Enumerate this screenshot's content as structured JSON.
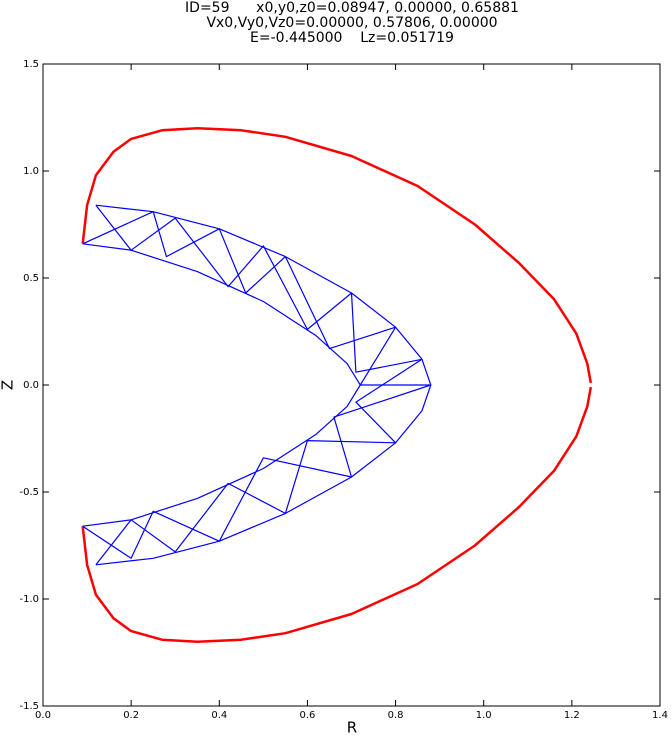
{
  "chart_data": {
    "type": "line",
    "title": [
      "ID=59      x0,y0,z0=0.08947, 0.00000, 0.65881",
      "Vx0,Vy0,Vz0=0.00000, 0.57806, 0.00000",
      "E=-0.445000    Lz=0.051719"
    ],
    "xlabel": "R",
    "ylabel": "Z",
    "xlim": [
      0,
      1.4
    ],
    "ylim": [
      -1.5,
      1.5
    ],
    "xticks": [
      {
        "value": 0,
        "label": "0.0"
      },
      0.2,
      0.4,
      0.6,
      0.8,
      {
        "value": 1,
        "label": "1.0"
      },
      1.2,
      1.4
    ],
    "yticks": [
      -1.5,
      {
        "value": -1,
        "label": "-1.0"
      },
      -0.5,
      {
        "value": 0,
        "label": "0.0"
      },
      0.5,
      {
        "value": 1,
        "label": "1.0"
      },
      1.5
    ],
    "series": [
      {
        "color": "#ff0000",
        "x": [
          0.09,
          0.1,
          0.12,
          0.16,
          0.2,
          0.27,
          0.35,
          0.45,
          0.55,
          0.7,
          0.85,
          0.98,
          1.08,
          1.16,
          1.21,
          1.235,
          1.243,
          null,
          1.243,
          1.235,
          1.21,
          1.16,
          1.08,
          0.98,
          0.85,
          0.7,
          0.55,
          0.45,
          0.35,
          0.27,
          0.2,
          0.16,
          0.12,
          0.1,
          0.09
        ],
        "y": [
          0.66,
          0.84,
          0.98,
          1.09,
          1.15,
          1.19,
          1.2,
          1.19,
          1.16,
          1.07,
          0.93,
          0.75,
          0.57,
          0.4,
          0.24,
          0.1,
          0.01,
          null,
          -0.01,
          -0.1,
          -0.24,
          -0.4,
          -0.57,
          -0.75,
          -0.93,
          -1.07,
          -1.16,
          -1.19,
          -1.2,
          -1.19,
          -1.15,
          -1.09,
          -0.98,
          -0.84,
          -0.66
        ]
      },
      {
        "color": "#0000ff",
        "x": [
          0.09,
          0.2,
          0.35,
          0.5,
          0.62,
          0.69,
          0.72,
          0.69,
          0.62,
          0.5,
          0.35,
          0.2,
          0.09
        ],
        "y": [
          0.66,
          0.63,
          0.53,
          0.39,
          0.23,
          0.1,
          0.0,
          -0.1,
          -0.23,
          -0.39,
          -0.53,
          -0.63,
          -0.66
        ]
      },
      {
        "color": "#0000ff",
        "x": [
          0.12,
          0.25,
          0.4,
          0.55,
          0.7,
          0.8,
          0.86,
          0.88,
          0.86,
          0.8,
          0.7,
          0.55,
          0.4,
          0.25,
          0.12
        ],
        "y": [
          0.84,
          0.81,
          0.73,
          0.6,
          0.43,
          0.27,
          0.12,
          0.0,
          -0.12,
          -0.27,
          -0.43,
          -0.6,
          -0.73,
          -0.81,
          -0.84
        ]
      },
      {
        "color": "#0000ff",
        "x": [
          0.12,
          0.2,
          0.3,
          0.42,
          0.5,
          0.6,
          0.7,
          0.71,
          0.86,
          0.71,
          0.8,
          0.6,
          0.55,
          0.42,
          0.3,
          0.2,
          0.12
        ],
        "y": [
          0.84,
          0.63,
          0.78,
          0.46,
          0.65,
          0.26,
          0.43,
          0.06,
          0.12,
          -0.08,
          -0.27,
          -0.26,
          -0.6,
          -0.46,
          -0.78,
          -0.63,
          -0.84
        ]
      },
      {
        "color": "#0000ff",
        "x": [
          0.09,
          0.25,
          0.28,
          0.4,
          0.46,
          0.55,
          0.65,
          0.8,
          0.72,
          0.88,
          0.66,
          0.7,
          0.5,
          0.4,
          0.25,
          0.2,
          0.09
        ],
        "y": [
          0.66,
          0.81,
          0.6,
          0.73,
          0.43,
          0.6,
          0.17,
          0.27,
          0.0,
          0.0,
          -0.15,
          -0.43,
          -0.34,
          -0.73,
          -0.59,
          -0.81,
          -0.66
        ]
      }
    ]
  }
}
